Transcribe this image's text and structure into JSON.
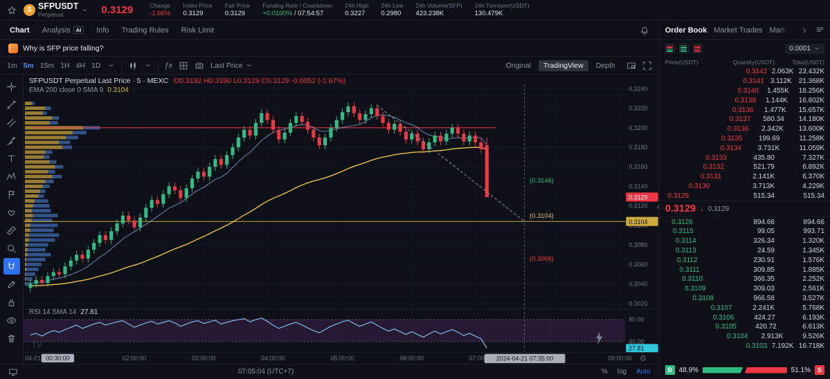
{
  "header": {
    "symbol": "SFPUSDT",
    "market_type": "Perpetual",
    "last_price": "0.3129",
    "stats": [
      {
        "label": "Change",
        "value": "-1.66%",
        "color": "red"
      },
      {
        "label": "Index Price",
        "value": "0.3129"
      },
      {
        "label": "Fair Price",
        "value": "0.3129"
      },
      {
        "label": "Funding Rate /  Countdown",
        "parts": [
          {
            "text": "+0.0100%",
            "color": "#2ebd85"
          },
          {
            "text": " /  07:54:57",
            "color": "#dfe3ea"
          }
        ]
      },
      {
        "label": "24h High",
        "value": "0.3227"
      },
      {
        "label": "24h Low",
        "value": "0.2980"
      },
      {
        "label": "24h Volume(SFP)",
        "value": "423.238K"
      },
      {
        "label": "24h Turnover(USDT)",
        "value": "130.479K"
      }
    ]
  },
  "tabs": {
    "items": [
      {
        "label": "Chart",
        "active": true
      },
      {
        "label": "Analysis",
        "badge": "AI"
      },
      {
        "label": "Info"
      },
      {
        "label": "Trading Rules"
      },
      {
        "label": "Risk Limit"
      }
    ]
  },
  "ai_bar": {
    "question": "Why is SFP price falling?"
  },
  "toolbar": {
    "timeframes": [
      "1m",
      "5m",
      "15m",
      "1H",
      "4H",
      "1D"
    ],
    "active_timeframe": "5m",
    "price_source": "Last Price",
    "view_modes": [
      "Original",
      "TradingView",
      "Depth"
    ],
    "active_view": "TradingView"
  },
  "drawing_tools": [
    {
      "name": "crosshair-cursor",
      "icon": "crosshair"
    },
    {
      "name": "trend-line",
      "icon": "trendline"
    },
    {
      "name": "parallel-channel",
      "icon": "channel"
    },
    {
      "name": "brush",
      "icon": "brush"
    },
    {
      "name": "text-tool",
      "icon": "text"
    },
    {
      "name": "xabcd-pattern",
      "icon": "xabcd"
    },
    {
      "name": "forecast-flag",
      "icon": "flag"
    },
    {
      "name": "emoji-sticker",
      "icon": "heart"
    },
    {
      "name": "measure-ruler",
      "icon": "ruler"
    },
    {
      "name": "zoom-in",
      "icon": "zoom"
    },
    {
      "name": "magnet-mode",
      "icon": "magnet"
    },
    {
      "name": "draw-pencil",
      "icon": "pencil"
    },
    {
      "name": "lock-drawings",
      "icon": "lock"
    },
    {
      "name": "hide-drawings",
      "icon": "eye"
    },
    {
      "name": "remove-drawings",
      "icon": "trash"
    }
  ],
  "active_tool": "magnet-mode",
  "chart": {
    "legend_line1": {
      "title": "SFPUSDT Perpetual Last Price · 5 · MEXC",
      "ohlc": "O0.3182  H0.3190  L0.3129  C0.3129  -0.0052 (-1.67%)"
    },
    "legend_line2": {
      "label": "EMA 200 close 0  SMA 9",
      "value": "0.3104"
    },
    "rsi_legend": {
      "label": "RSI 14  SMA 14",
      "value": "27.81"
    },
    "y_axis": [
      "0.3240",
      "0.3220",
      "0.3200",
      "0.3180",
      "0.3160",
      "0.3140",
      "0.3120",
      "0.3100",
      "0.3080",
      "0.3060",
      "0.3040",
      "0.3020"
    ],
    "rsi_axis": [
      "80.00",
      "40.00"
    ],
    "badges": {
      "last_price": "0.3129",
      "ema": "0.3104",
      "rsi": "27.81"
    },
    "level_labels": [
      {
        "text": "(0.3146)",
        "color": "#2ebd85"
      },
      {
        "text": "(0.3104)",
        "color": "#d8c077"
      },
      {
        "text": "(0.3066)",
        "color": "#f23645"
      }
    ],
    "time_axis": {
      "start_date": "04-21",
      "start_badge": "00:30:00",
      "hour_labels": [
        "02:00:00",
        "03:00:00",
        "04:00:00",
        "05:00:00",
        "06:00:00",
        "07:00:00"
      ],
      "crosshair": "2024-04-21  07:35:00",
      "end_label": "09:00:00"
    },
    "chart_data": {
      "type": "candlestick",
      "interval": "5m",
      "price_range": [
        0.302,
        0.324
      ],
      "closes": [
        0.304,
        0.3044,
        0.3041,
        0.3048,
        0.3052,
        0.305,
        0.3058,
        0.3064,
        0.307,
        0.3066,
        0.3075,
        0.3082,
        0.309,
        0.3085,
        0.3094,
        0.3102,
        0.311,
        0.3105,
        0.3098,
        0.3108,
        0.3118,
        0.3126,
        0.3122,
        0.3132,
        0.314,
        0.3136,
        0.3128,
        0.3138,
        0.3148,
        0.3155,
        0.315,
        0.316,
        0.3168,
        0.3162,
        0.3172,
        0.318,
        0.319,
        0.3198,
        0.3192,
        0.3205,
        0.3215,
        0.3208,
        0.3198,
        0.3188,
        0.3195,
        0.3205,
        0.3212,
        0.3206,
        0.3198,
        0.319,
        0.3182,
        0.319,
        0.32,
        0.3208,
        0.3216,
        0.3222,
        0.3215,
        0.3208,
        0.3214,
        0.322,
        0.3212,
        0.3205,
        0.3198,
        0.3204,
        0.3196,
        0.3188,
        0.3194,
        0.3186,
        0.3178,
        0.3185,
        0.3192,
        0.3186,
        0.3194,
        0.32,
        0.3194,
        0.3186,
        0.3192,
        0.3185,
        0.3178
      ],
      "last_candle": {
        "o": 0.3182,
        "h": 0.319,
        "l": 0.3129,
        "c": 0.3129
      },
      "levels": {
        "resistance": 0.32,
        "ema_line": 0.3104,
        "fib": [
          0.3146,
          0.3104,
          0.3066
        ]
      },
      "rsi": {
        "upper": 80,
        "lower": 40,
        "last": 27.81,
        "values": [
          52,
          55,
          50,
          56,
          60,
          57,
          62,
          66,
          70,
          64,
          68,
          72,
          75,
          70,
          73,
          76,
          78,
          72,
          66,
          70,
          74,
          77,
          72,
          75,
          78,
          74,
          68,
          72,
          76,
          78,
          73,
          76,
          79,
          72,
          75,
          78,
          80,
          82,
          76,
          80,
          83,
          77,
          70,
          64,
          68,
          72,
          75,
          70,
          65,
          60,
          56,
          62,
          68,
          72,
          76,
          79,
          73,
          68,
          72,
          76,
          70,
          64,
          59,
          63,
          58,
          53,
          58,
          53,
          48,
          54,
          59,
          54,
          58,
          62,
          57,
          51,
          55,
          50,
          45,
          27.81
        ]
      },
      "volume_profile": [
        [
          0.3225,
          10,
          4
        ],
        [
          0.322,
          30,
          8
        ],
        [
          0.3215,
          26,
          6
        ],
        [
          0.321,
          40,
          10
        ],
        [
          0.3205,
          36,
          12
        ],
        [
          0.32,
          85,
          25
        ],
        [
          0.3195,
          70,
          20
        ],
        [
          0.319,
          60,
          18
        ],
        [
          0.3185,
          50,
          16
        ],
        [
          0.318,
          55,
          14
        ],
        [
          0.3175,
          30,
          10
        ],
        [
          0.317,
          28,
          8
        ],
        [
          0.3165,
          36,
          10
        ],
        [
          0.316,
          44,
          12
        ],
        [
          0.3155,
          34,
          10
        ],
        [
          0.315,
          40,
          14
        ],
        [
          0.3145,
          30,
          12
        ],
        [
          0.314,
          26,
          10
        ],
        [
          0.3135,
          22,
          8
        ],
        [
          0.313,
          20,
          8
        ],
        [
          0.3125,
          14,
          20
        ],
        [
          0.312,
          12,
          24
        ],
        [
          0.3115,
          10,
          28
        ],
        [
          0.311,
          12,
          36
        ],
        [
          0.3105,
          10,
          30
        ],
        [
          0.31,
          8,
          40
        ],
        [
          0.3095,
          8,
          34
        ],
        [
          0.309,
          6,
          44
        ],
        [
          0.3085,
          6,
          38
        ],
        [
          0.308,
          4,
          30
        ],
        [
          0.3075,
          4,
          26
        ],
        [
          0.307,
          4,
          34
        ],
        [
          0.3065,
          2,
          28
        ],
        [
          0.306,
          2,
          22
        ],
        [
          0.3055,
          2,
          18
        ],
        [
          0.305,
          1,
          14
        ],
        [
          0.3045,
          1,
          10
        ],
        [
          0.304,
          1,
          8
        ]
      ]
    }
  },
  "bottom_bar": {
    "time": "07:05:04 (UTC+7)",
    "percent": "%",
    "log": "log",
    "auto": "Auto"
  },
  "order_book": {
    "tabs": [
      "Order Book",
      "Market Trades",
      "Mark"
    ],
    "active_tab": "Order Book",
    "tick": "0.0001",
    "columns": [
      "Price(USDT)",
      "Quantity(USDT)",
      "Total(USDT)"
    ],
    "asks": [
      [
        "0.3142",
        "2.063K",
        "23.432K",
        100
      ],
      [
        "0.3141",
        "3.112K",
        "21.368K",
        91
      ],
      [
        "0.3140",
        "1.455K",
        "18.256K",
        78
      ],
      [
        "0.3139",
        "1.144K",
        "16.802K",
        72
      ],
      [
        "0.3138",
        "1.477K",
        "15.657K",
        67
      ],
      [
        "0.3137",
        "580.34",
        "14.180K",
        61
      ],
      [
        "0.3136",
        "2.342K",
        "13.600K",
        58
      ],
      [
        "0.3135",
        "199.69",
        "11.258K",
        48
      ],
      [
        "0.3134",
        "3.731K",
        "11.059K",
        47
      ],
      [
        "0.3133",
        "435.80",
        "7.327K",
        31
      ],
      [
        "0.3132",
        "521.79",
        "6.892K",
        29
      ],
      [
        "0.3131",
        "2.141K",
        "6.370K",
        27
      ],
      [
        "0.3130",
        "3.713K",
        "4.229K",
        18
      ],
      [
        "0.3129",
        "515.34",
        "515.34",
        2
      ]
    ],
    "mid": {
      "price": "0.3129",
      "arrow": "↓",
      "fair": "0.3129"
    },
    "bids": [
      [
        "0.3126",
        "894.66",
        "894.66",
        5
      ],
      [
        "0.3115",
        "99.05",
        "993.71",
        6
      ],
      [
        "0.3114",
        "326.34",
        "1.320K",
        8
      ],
      [
        "0.3113",
        "24.59",
        "1.345K",
        8
      ],
      [
        "0.3112",
        "230.91",
        "1.576K",
        9
      ],
      [
        "0.3111",
        "309.85",
        "1.885K",
        11
      ],
      [
        "0.3110",
        "366.35",
        "2.252K",
        13
      ],
      [
        "0.3109",
        "309.03",
        "2.561K",
        15
      ],
      [
        "0.3108",
        "966.58",
        "3.527K",
        21
      ],
      [
        "0.3107",
        "2.241K",
        "5.768K",
        35
      ],
      [
        "0.3106",
        "424.27",
        "6.193K",
        37
      ],
      [
        "0.3105",
        "420.72",
        "6.613K",
        40
      ],
      [
        "0.3104",
        "2.913K",
        "9.526K",
        57
      ],
      [
        "0.3103",
        "7.192K",
        "16.718K",
        100
      ]
    ],
    "ratio": {
      "buy_label": "B",
      "buy_pct": "48.9%",
      "sell_pct": "51.1%",
      "sell_label": "S"
    }
  }
}
